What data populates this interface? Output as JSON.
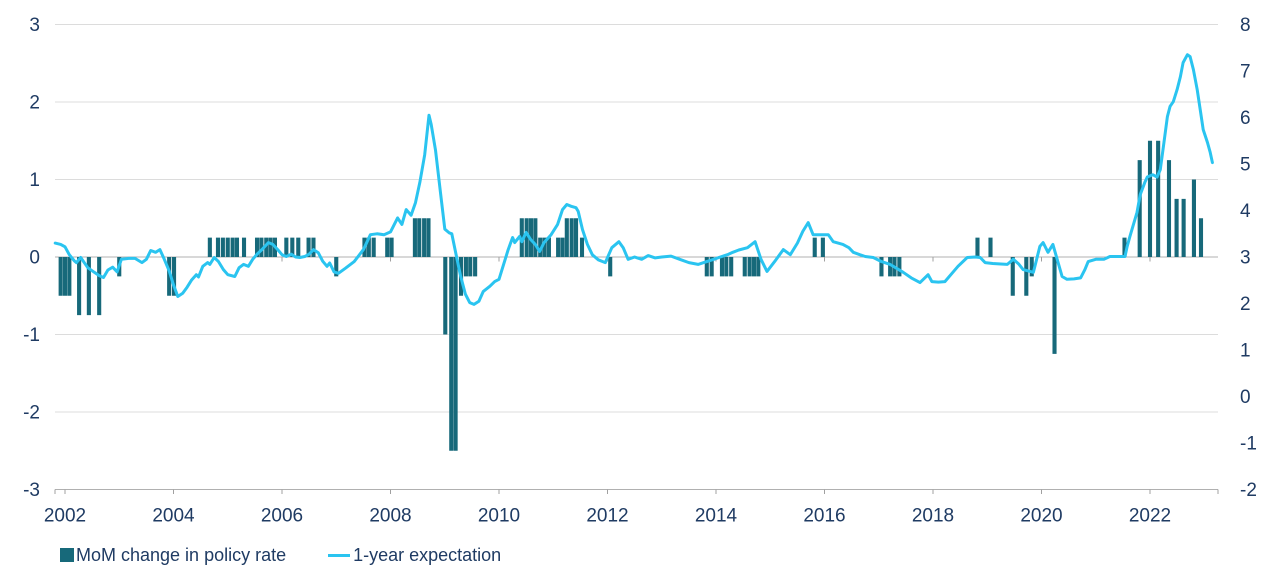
{
  "legend": {
    "bar_label": "MoM change in policy rate",
    "line_label": "1-year expectation"
  },
  "colors": {
    "bar": "#17697a",
    "line": "#2ac4f0",
    "text": "#1f3b63",
    "gridline": "#dcdcdc",
    "axis_line": "#b0b0b0",
    "tick": "#a0a0a0",
    "background": "#ffffff"
  },
  "chart_data": {
    "type": "bar+line",
    "title": "",
    "xlabel": "",
    "ylabel_left": "MoM change in policy rate",
    "ylabel_right": "1-year expectation",
    "grid": "horizontal",
    "legend_position": "bottom-left",
    "x_axis": {
      "min": 2001.8,
      "max": 2023.3,
      "tick_years": [
        2002,
        2004,
        2006,
        2008,
        2010,
        2012,
        2014,
        2016,
        2018,
        2020,
        2022
      ]
    },
    "left_axis": {
      "min": -3,
      "max": 3,
      "ticks": [
        3,
        2,
        1,
        0,
        -1,
        -2,
        -3
      ]
    },
    "right_axis": {
      "min": -2,
      "max": 8,
      "ticks": [
        8,
        7,
        6,
        5,
        4,
        3,
        2,
        1,
        0,
        -1,
        -2
      ]
    },
    "bars": [
      [
        2001.92,
        -0.5
      ],
      [
        2002.0,
        -0.5
      ],
      [
        2002.08,
        -0.5
      ],
      [
        2002.26,
        -0.75
      ],
      [
        2002.44,
        -0.75
      ],
      [
        2002.63,
        -0.75
      ],
      [
        2003.0,
        -0.25
      ],
      [
        2003.92,
        -0.5
      ],
      [
        2004.01,
        -0.5
      ],
      [
        2004.67,
        0.25
      ],
      [
        2004.82,
        0.25
      ],
      [
        2004.91,
        0.25
      ],
      [
        2005.0,
        0.25
      ],
      [
        2005.09,
        0.25
      ],
      [
        2005.17,
        0.25
      ],
      [
        2005.3,
        0.25
      ],
      [
        2005.54,
        0.25
      ],
      [
        2005.62,
        0.25
      ],
      [
        2005.71,
        0.25
      ],
      [
        2005.79,
        0.25
      ],
      [
        2005.87,
        0.25
      ],
      [
        2006.08,
        0.25
      ],
      [
        2006.19,
        0.25
      ],
      [
        2006.3,
        0.25
      ],
      [
        2006.49,
        0.25
      ],
      [
        2006.58,
        0.25
      ],
      [
        2007.0,
        -0.25
      ],
      [
        2007.52,
        0.25
      ],
      [
        2007.6,
        0.25
      ],
      [
        2007.69,
        0.25
      ],
      [
        2007.94,
        0.25
      ],
      [
        2008.02,
        0.25
      ],
      [
        2008.45,
        0.5
      ],
      [
        2008.53,
        0.5
      ],
      [
        2008.62,
        0.5
      ],
      [
        2008.7,
        0.5
      ],
      [
        2009.01,
        -1.0
      ],
      [
        2009.12,
        -2.5
      ],
      [
        2009.2,
        -2.5
      ],
      [
        2009.3,
        -0.5
      ],
      [
        2009.39,
        -0.25
      ],
      [
        2009.47,
        -0.25
      ],
      [
        2009.56,
        -0.25
      ],
      [
        2010.42,
        0.5
      ],
      [
        2010.51,
        0.5
      ],
      [
        2010.59,
        0.5
      ],
      [
        2010.67,
        0.5
      ],
      [
        2010.76,
        0.25
      ],
      [
        2010.84,
        0.25
      ],
      [
        2010.92,
        0.25
      ],
      [
        2011.09,
        0.25
      ],
      [
        2011.17,
        0.25
      ],
      [
        2011.25,
        0.5
      ],
      [
        2011.34,
        0.5
      ],
      [
        2011.42,
        0.5
      ],
      [
        2011.53,
        0.25
      ],
      [
        2012.05,
        -0.25
      ],
      [
        2013.83,
        -0.25
      ],
      [
        2013.92,
        -0.25
      ],
      [
        2014.11,
        -0.25
      ],
      [
        2014.19,
        -0.25
      ],
      [
        2014.28,
        -0.25
      ],
      [
        2014.53,
        -0.25
      ],
      [
        2014.62,
        -0.25
      ],
      [
        2014.7,
        -0.25
      ],
      [
        2014.78,
        -0.25
      ],
      [
        2015.82,
        0.25
      ],
      [
        2015.97,
        0.25
      ],
      [
        2017.05,
        -0.25
      ],
      [
        2017.21,
        -0.25
      ],
      [
        2017.29,
        -0.25
      ],
      [
        2017.38,
        -0.25
      ],
      [
        2018.82,
        0.25
      ],
      [
        2019.06,
        0.25
      ],
      [
        2019.47,
        -0.5
      ],
      [
        2019.72,
        -0.5
      ],
      [
        2019.82,
        -0.25
      ],
      [
        2020.24,
        -1.25
      ],
      [
        2021.53,
        0.25
      ],
      [
        2021.81,
        1.25
      ],
      [
        2022.0,
        1.5
      ],
      [
        2022.15,
        1.5
      ],
      [
        2022.35,
        1.25
      ],
      [
        2022.49,
        0.75
      ],
      [
        2022.62,
        0.75
      ],
      [
        2022.81,
        1.0
      ],
      [
        2022.94,
        0.5
      ]
    ],
    "line": [
      [
        2001.82,
        3.3
      ],
      [
        2001.92,
        3.27
      ],
      [
        2002.0,
        3.22
      ],
      [
        2002.08,
        3.05
      ],
      [
        2002.17,
        2.92
      ],
      [
        2002.21,
        2.88
      ],
      [
        2002.29,
        2.99
      ],
      [
        2002.42,
        2.77
      ],
      [
        2002.54,
        2.67
      ],
      [
        2002.63,
        2.6
      ],
      [
        2002.71,
        2.56
      ],
      [
        2002.79,
        2.72
      ],
      [
        2002.88,
        2.78
      ],
      [
        2002.96,
        2.68
      ],
      [
        2003.04,
        2.95
      ],
      [
        2003.17,
        2.97
      ],
      [
        2003.29,
        2.97
      ],
      [
        2003.42,
        2.88
      ],
      [
        2003.5,
        2.95
      ],
      [
        2003.58,
        3.14
      ],
      [
        2003.67,
        3.1
      ],
      [
        2003.75,
        3.16
      ],
      [
        2003.83,
        2.95
      ],
      [
        2003.92,
        2.7
      ],
      [
        2004.0,
        2.4
      ],
      [
        2004.08,
        2.15
      ],
      [
        2004.17,
        2.22
      ],
      [
        2004.25,
        2.35
      ],
      [
        2004.33,
        2.5
      ],
      [
        2004.42,
        2.62
      ],
      [
        2004.46,
        2.57
      ],
      [
        2004.54,
        2.8
      ],
      [
        2004.63,
        2.88
      ],
      [
        2004.67,
        2.84
      ],
      [
        2004.75,
        2.99
      ],
      [
        2004.83,
        2.9
      ],
      [
        2004.92,
        2.73
      ],
      [
        2005.0,
        2.62
      ],
      [
        2005.13,
        2.58
      ],
      [
        2005.21,
        2.77
      ],
      [
        2005.29,
        2.84
      ],
      [
        2005.38,
        2.8
      ],
      [
        2005.46,
        2.95
      ],
      [
        2005.54,
        3.06
      ],
      [
        2005.63,
        3.16
      ],
      [
        2005.75,
        3.31
      ],
      [
        2005.83,
        3.27
      ],
      [
        2005.92,
        3.16
      ],
      [
        2006.0,
        3.05
      ],
      [
        2006.08,
        3.01
      ],
      [
        2006.17,
        3.06
      ],
      [
        2006.25,
        3.0
      ],
      [
        2006.33,
        2.99
      ],
      [
        2006.42,
        3.01
      ],
      [
        2006.5,
        3.06
      ],
      [
        2006.58,
        3.16
      ],
      [
        2006.67,
        3.09
      ],
      [
        2006.75,
        2.91
      ],
      [
        2006.83,
        2.8
      ],
      [
        2006.88,
        2.87
      ],
      [
        2006.96,
        2.68
      ],
      [
        2007.04,
        2.65
      ],
      [
        2007.17,
        2.76
      ],
      [
        2007.33,
        2.9
      ],
      [
        2007.5,
        3.16
      ],
      [
        2007.63,
        3.48
      ],
      [
        2007.75,
        3.5
      ],
      [
        2007.88,
        3.48
      ],
      [
        2008.0,
        3.54
      ],
      [
        2008.13,
        3.84
      ],
      [
        2008.21,
        3.7
      ],
      [
        2008.29,
        4.02
      ],
      [
        2008.38,
        3.9
      ],
      [
        2008.46,
        4.17
      ],
      [
        2008.54,
        4.6
      ],
      [
        2008.63,
        5.2
      ],
      [
        2008.71,
        6.05
      ],
      [
        2008.75,
        5.85
      ],
      [
        2008.83,
        5.3
      ],
      [
        2008.92,
        4.4
      ],
      [
        2009.0,
        3.6
      ],
      [
        2009.08,
        3.52
      ],
      [
        2009.13,
        3.5
      ],
      [
        2009.21,
        3.05
      ],
      [
        2009.29,
        2.6
      ],
      [
        2009.38,
        2.2
      ],
      [
        2009.46,
        2.02
      ],
      [
        2009.54,
        1.98
      ],
      [
        2009.63,
        2.05
      ],
      [
        2009.71,
        2.26
      ],
      [
        2009.83,
        2.37
      ],
      [
        2009.92,
        2.47
      ],
      [
        2010.0,
        2.52
      ],
      [
        2010.17,
        3.16
      ],
      [
        2010.25,
        3.42
      ],
      [
        2010.29,
        3.31
      ],
      [
        2010.38,
        3.44
      ],
      [
        2010.42,
        3.33
      ],
      [
        2010.5,
        3.53
      ],
      [
        2010.58,
        3.38
      ],
      [
        2010.67,
        3.27
      ],
      [
        2010.75,
        3.12
      ],
      [
        2010.83,
        3.31
      ],
      [
        2010.96,
        3.48
      ],
      [
        2011.08,
        3.7
      ],
      [
        2011.17,
        4.02
      ],
      [
        2011.25,
        4.13
      ],
      [
        2011.33,
        4.09
      ],
      [
        2011.42,
        4.06
      ],
      [
        2011.46,
        3.98
      ],
      [
        2011.54,
        3.59
      ],
      [
        2011.63,
        3.27
      ],
      [
        2011.72,
        3.05
      ],
      [
        2011.83,
        2.94
      ],
      [
        2011.96,
        2.88
      ],
      [
        2012.08,
        3.2
      ],
      [
        2012.21,
        3.33
      ],
      [
        2012.29,
        3.2
      ],
      [
        2012.38,
        2.95
      ],
      [
        2012.5,
        3.0
      ],
      [
        2012.63,
        2.95
      ],
      [
        2012.75,
        3.03
      ],
      [
        2012.88,
        2.98
      ],
      [
        2013.0,
        3.0
      ],
      [
        2013.17,
        3.02
      ],
      [
        2013.33,
        2.95
      ],
      [
        2013.5,
        2.88
      ],
      [
        2013.67,
        2.84
      ],
      [
        2013.83,
        2.9
      ],
      [
        2013.96,
        2.95
      ],
      [
        2014.08,
        3.0
      ],
      [
        2014.21,
        3.05
      ],
      [
        2014.31,
        3.1
      ],
      [
        2014.42,
        3.15
      ],
      [
        2014.58,
        3.2
      ],
      [
        2014.72,
        3.33
      ],
      [
        2014.83,
        2.95
      ],
      [
        2014.94,
        2.69
      ],
      [
        2015.08,
        2.9
      ],
      [
        2015.24,
        3.16
      ],
      [
        2015.37,
        3.05
      ],
      [
        2015.5,
        3.3
      ],
      [
        2015.6,
        3.55
      ],
      [
        2015.7,
        3.74
      ],
      [
        2015.79,
        3.48
      ],
      [
        2015.92,
        3.48
      ],
      [
        2016.07,
        3.48
      ],
      [
        2016.16,
        3.33
      ],
      [
        2016.25,
        3.3
      ],
      [
        2016.34,
        3.27
      ],
      [
        2016.45,
        3.2
      ],
      [
        2016.53,
        3.1
      ],
      [
        2016.65,
        3.05
      ],
      [
        2016.75,
        3.01
      ],
      [
        2016.9,
        2.99
      ],
      [
        2017.05,
        2.9
      ],
      [
        2017.21,
        2.84
      ],
      [
        2017.45,
        2.67
      ],
      [
        2017.6,
        2.55
      ],
      [
        2017.76,
        2.45
      ],
      [
        2017.91,
        2.62
      ],
      [
        2017.98,
        2.47
      ],
      [
        2018.1,
        2.46
      ],
      [
        2018.22,
        2.47
      ],
      [
        2018.35,
        2.65
      ],
      [
        2018.46,
        2.8
      ],
      [
        2018.63,
        2.99
      ],
      [
        2018.78,
        3.0
      ],
      [
        2018.87,
        2.99
      ],
      [
        2018.96,
        2.88
      ],
      [
        2019.1,
        2.86
      ],
      [
        2019.25,
        2.85
      ],
      [
        2019.37,
        2.84
      ],
      [
        2019.48,
        2.95
      ],
      [
        2019.58,
        2.85
      ],
      [
        2019.66,
        2.73
      ],
      [
        2019.85,
        2.67
      ],
      [
        2019.97,
        3.23
      ],
      [
        2020.03,
        3.31
      ],
      [
        2020.12,
        3.1
      ],
      [
        2020.21,
        3.27
      ],
      [
        2020.38,
        2.58
      ],
      [
        2020.47,
        2.52
      ],
      [
        2020.6,
        2.53
      ],
      [
        2020.72,
        2.55
      ],
      [
        2020.8,
        2.73
      ],
      [
        2020.86,
        2.9
      ],
      [
        2021.0,
        2.95
      ],
      [
        2021.15,
        2.95
      ],
      [
        2021.26,
        3.01
      ],
      [
        2021.45,
        3.01
      ],
      [
        2021.54,
        3.01
      ],
      [
        2021.58,
        3.23
      ],
      [
        2021.63,
        3.44
      ],
      [
        2021.76,
        3.96
      ],
      [
        2021.82,
        4.34
      ],
      [
        2021.91,
        4.62
      ],
      [
        2021.95,
        4.72
      ],
      [
        2022.05,
        4.77
      ],
      [
        2022.13,
        4.72
      ],
      [
        2022.19,
        4.88
      ],
      [
        2022.24,
        5.31
      ],
      [
        2022.32,
        6.02
      ],
      [
        2022.37,
        6.24
      ],
      [
        2022.43,
        6.34
      ],
      [
        2022.5,
        6.6
      ],
      [
        2022.56,
        6.88
      ],
      [
        2022.61,
        7.18
      ],
      [
        2022.69,
        7.35
      ],
      [
        2022.74,
        7.31
      ],
      [
        2022.8,
        7.03
      ],
      [
        2022.87,
        6.6
      ],
      [
        2022.93,
        6.13
      ],
      [
        2022.98,
        5.74
      ],
      [
        2023.06,
        5.46
      ],
      [
        2023.11,
        5.25
      ],
      [
        2023.15,
        5.03
      ]
    ]
  }
}
